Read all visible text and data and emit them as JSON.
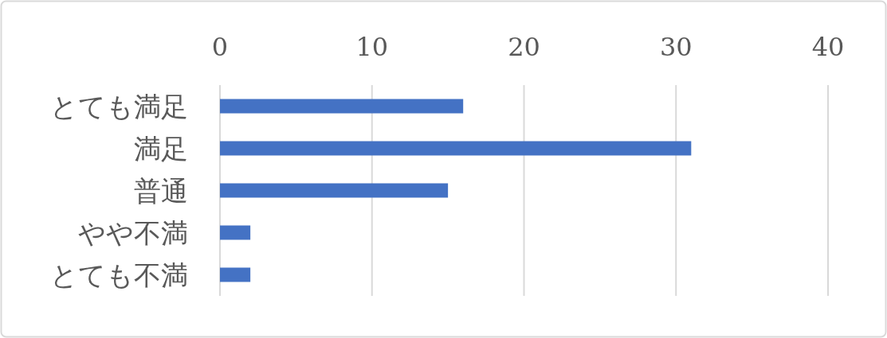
{
  "chart_data": {
    "type": "bar",
    "orientation": "horizontal",
    "categories": [
      "とても満足",
      "満足",
      "普通",
      "やや不満",
      "とても不満"
    ],
    "values": [
      16,
      31,
      15,
      2,
      2
    ],
    "color": "#4472c4",
    "xlim": [
      0,
      40
    ],
    "xticks": [
      0,
      10,
      20,
      30,
      40
    ],
    "grid": "x"
  }
}
